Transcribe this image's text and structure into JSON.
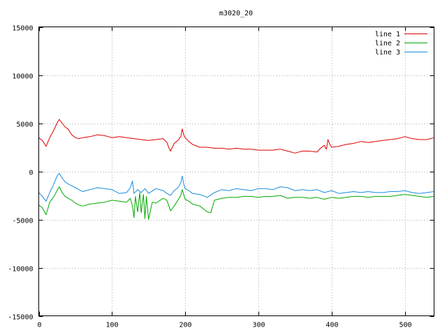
{
  "chart_data": {
    "type": "line",
    "title": "m3020_20",
    "xlabel": "",
    "ylabel": "",
    "xlim": [
      0,
      540
    ],
    "ylim": [
      -15000,
      15000
    ],
    "x_ticks": [
      0,
      100,
      200,
      300,
      400,
      500
    ],
    "y_ticks": [
      -15000,
      -10000,
      -5000,
      0,
      5000,
      10000,
      15000
    ],
    "grid": true,
    "legend_position": "top-right",
    "series": [
      {
        "name": "line 1",
        "color": "#dd0000",
        "x": [
          0,
          5,
          10,
          15,
          20,
          25,
          28,
          32,
          36,
          40,
          45,
          50,
          55,
          60,
          70,
          80,
          90,
          100,
          110,
          120,
          130,
          140,
          150,
          160,
          170,
          175,
          178,
          180,
          185,
          190,
          194,
          196,
          198,
          200,
          205,
          210,
          220,
          230,
          240,
          250,
          260,
          270,
          280,
          290,
          300,
          310,
          320,
          330,
          340,
          350,
          360,
          370,
          380,
          385,
          390,
          393,
          395,
          397,
          400,
          410,
          420,
          430,
          440,
          450,
          460,
          470,
          480,
          490,
          500,
          510,
          520,
          530,
          540
        ],
        "y": [
          3500,
          3200,
          2600,
          3500,
          4200,
          5000,
          5400,
          5000,
          4600,
          4400,
          3800,
          3500,
          3400,
          3500,
          3600,
          3800,
          3700,
          3500,
          3600,
          3500,
          3400,
          3300,
          3200,
          3300,
          3400,
          3000,
          2400,
          2100,
          2900,
          3200,
          3600,
          4400,
          3800,
          3500,
          3100,
          2800,
          2500,
          2500,
          2400,
          2400,
          2300,
          2400,
          2300,
          2300,
          2200,
          2200,
          2200,
          2300,
          2100,
          1900,
          2100,
          2100,
          2000,
          2400,
          2700,
          2300,
          3300,
          2900,
          2500,
          2600,
          2800,
          2900,
          3100,
          3000,
          3100,
          3200,
          3300,
          3400,
          3600,
          3400,
          3300,
          3300,
          3500
        ]
      },
      {
        "name": "line 2",
        "color": "#00aa00",
        "x": [
          0,
          5,
          10,
          15,
          20,
          25,
          28,
          32,
          36,
          40,
          45,
          50,
          55,
          60,
          70,
          80,
          90,
          100,
          110,
          120,
          125,
          128,
          130,
          132,
          135,
          138,
          140,
          143,
          145,
          147,
          150,
          155,
          160,
          170,
          175,
          180,
          185,
          190,
          194,
          196,
          198,
          200,
          205,
          210,
          220,
          230,
          235,
          240,
          250,
          260,
          270,
          280,
          290,
          300,
          310,
          320,
          330,
          340,
          350,
          360,
          370,
          380,
          390,
          400,
          410,
          420,
          430,
          440,
          450,
          460,
          470,
          480,
          490,
          500,
          510,
          520,
          530,
          540
        ],
        "y": [
          -3500,
          -3800,
          -4500,
          -3200,
          -2700,
          -2000,
          -1600,
          -2200,
          -2600,
          -2800,
          -3000,
          -3300,
          -3500,
          -3600,
          -3400,
          -3300,
          -3200,
          -3000,
          -3100,
          -3200,
          -2800,
          -3600,
          -4800,
          -2600,
          -4200,
          -2200,
          -4300,
          -2400,
          -4900,
          -2600,
          -5000,
          -3200,
          -3300,
          -2800,
          -3000,
          -4100,
          -3600,
          -3000,
          -2500,
          -1900,
          -2400,
          -2900,
          -3100,
          -3400,
          -3600,
          -4200,
          -4300,
          -3000,
          -2800,
          -2700,
          -2700,
          -2600,
          -2600,
          -2700,
          -2600,
          -2600,
          -2500,
          -2800,
          -2700,
          -2700,
          -2800,
          -2700,
          -2900,
          -2700,
          -2800,
          -2700,
          -2600,
          -2600,
          -2700,
          -2600,
          -2600,
          -2600,
          -2500,
          -2400,
          -2500,
          -2600,
          -2700,
          -2600
        ]
      },
      {
        "name": "line 3",
        "color": "#1a8cdc",
        "x": [
          0,
          5,
          10,
          15,
          20,
          25,
          28,
          32,
          36,
          40,
          45,
          50,
          55,
          60,
          70,
          80,
          90,
          100,
          110,
          120,
          125,
          128,
          130,
          135,
          140,
          145,
          150,
          160,
          170,
          175,
          180,
          185,
          190,
          194,
          196,
          198,
          200,
          205,
          210,
          220,
          230,
          240,
          250,
          260,
          270,
          280,
          290,
          300,
          310,
          320,
          330,
          340,
          350,
          360,
          370,
          380,
          390,
          400,
          410,
          420,
          430,
          440,
          450,
          460,
          470,
          480,
          490,
          500,
          510,
          520,
          530,
          540
        ],
        "y": [
          -2200,
          -2600,
          -3100,
          -2200,
          -1400,
          -500,
          -200,
          -700,
          -1100,
          -1300,
          -1500,
          -1700,
          -1900,
          -2100,
          -1900,
          -1700,
          -1800,
          -1900,
          -2300,
          -2200,
          -1700,
          -1000,
          -2300,
          -1900,
          -2200,
          -1800,
          -2300,
          -1800,
          -2000,
          -2300,
          -2500,
          -2000,
          -1700,
          -1200,
          -500,
          -1300,
          -1800,
          -2000,
          -2300,
          -2400,
          -2700,
          -2200,
          -1900,
          -2000,
          -1800,
          -1900,
          -2000,
          -1800,
          -1800,
          -1900,
          -1600,
          -1700,
          -2000,
          -1900,
          -2000,
          -1900,
          -2200,
          -2000,
          -2300,
          -2200,
          -2100,
          -2200,
          -2100,
          -2200,
          -2200,
          -2100,
          -2100,
          -2000,
          -2200,
          -2300,
          -2200,
          -2100
        ]
      }
    ]
  }
}
